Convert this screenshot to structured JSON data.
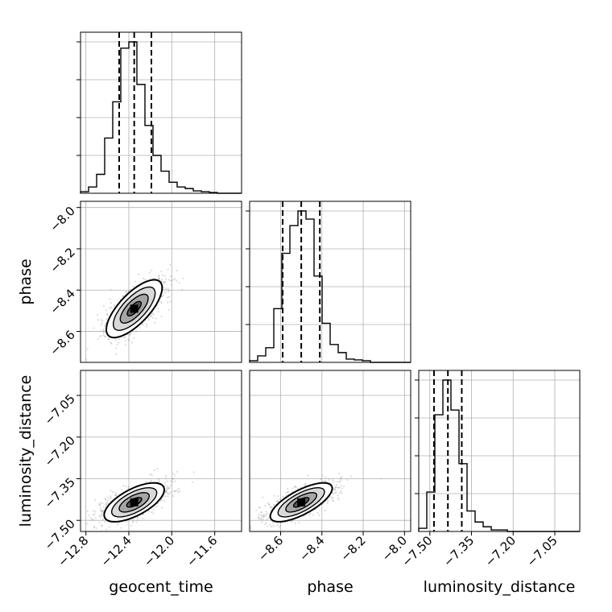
{
  "chart_data": {
    "type": "corner",
    "parameters": [
      "geocent_time",
      "phase",
      "luminosity_distance"
    ],
    "grid": true,
    "ranges": {
      "geocent_time": [
        -12.85,
        -11.35
      ],
      "phase": [
        -8.75,
        -7.97
      ],
      "luminosity_distance": [
        -7.54,
        -6.96
      ]
    },
    "ticks": {
      "geocent_time": [
        -12.8,
        -12.4,
        -12.0,
        -11.6
      ],
      "phase": [
        -8.6,
        -8.4,
        -8.2,
        -8.0
      ],
      "luminosity_distance": [
        -7.5,
        -7.35,
        -7.2,
        -7.05
      ]
    },
    "tick_labels": {
      "geocent_time": [
        "−12.8",
        "−12.4",
        "−12.0",
        "−11.6"
      ],
      "phase": [
        "−8.6",
        "−8.4",
        "−8.2",
        "−8.0"
      ],
      "luminosity_distance": [
        "−7.50",
        "−7.35",
        "−7.20",
        "−7.05"
      ]
    },
    "quantiles": {
      "geocent_time": [
        -12.49,
        -12.35,
        -12.19
      ],
      "phase": [
        -8.59,
        -8.5,
        -8.41
      ],
      "luminosity_distance": [
        -7.485,
        -7.435,
        -7.385
      ]
    },
    "histograms": {
      "geocent_time": {
        "edges": [
          -12.85,
          -12.775,
          -12.7,
          -12.625,
          -12.55,
          -12.475,
          -12.4,
          -12.325,
          -12.25,
          -12.175,
          -12.1,
          -12.025,
          -11.95,
          -11.875,
          -11.8,
          -11.725,
          -11.65,
          -11.575,
          -11.5,
          -11.425,
          -11.35
        ],
        "counts": [
          0.01,
          0.04,
          0.12,
          0.35,
          0.58,
          0.92,
          0.96,
          0.69,
          0.43,
          0.24,
          0.14,
          0.07,
          0.04,
          0.03,
          0.015,
          0.01,
          0.005,
          0.0,
          0.0,
          0.0
        ]
      },
      "phase": {
        "edges": [
          -8.75,
          -8.711,
          -8.672,
          -8.633,
          -8.594,
          -8.555,
          -8.516,
          -8.477,
          -8.438,
          -8.399,
          -8.36,
          -8.321,
          -8.282,
          -8.243,
          -8.204,
          -8.165,
          -8.126,
          -8.087,
          -8.048,
          -8.009,
          -7.97
        ],
        "counts": [
          0.01,
          0.04,
          0.09,
          0.33,
          0.67,
          0.84,
          0.93,
          0.88,
          0.53,
          0.24,
          0.11,
          0.06,
          0.02,
          0.015,
          0.01,
          0.0,
          0.0,
          0.0,
          0.0,
          0.0
        ]
      },
      "luminosity_distance": {
        "edges": [
          -7.54,
          -7.511,
          -7.482,
          -7.453,
          -7.424,
          -7.395,
          -7.366,
          -7.337,
          -7.308,
          -7.279,
          -7.25,
          -7.221,
          -7.192,
          -7.163,
          -7.134,
          -7.105,
          -7.076,
          -7.047,
          -7.018,
          -6.989,
          -6.96
        ],
        "counts": [
          0.02,
          0.25,
          0.74,
          0.96,
          0.77,
          0.43,
          0.13,
          0.06,
          0.03,
          0.01,
          0.01,
          0.0,
          0.0,
          0.0,
          0.0,
          0.0,
          0.0,
          0.0,
          0.0,
          0.0
        ]
      }
    },
    "joint": [
      {
        "x": "geocent_time",
        "y": "phase",
        "center": [
          -12.35,
          -8.49
        ],
        "sd": [
          0.13,
          0.07
        ],
        "correlation": 0.72,
        "contour_levels_sigma": [
          0.5,
          1.0,
          1.5,
          2.0
        ]
      },
      {
        "x": "geocent_time",
        "y": "luminosity_distance",
        "center": [
          -12.35,
          -7.435
        ],
        "sd": [
          0.14,
          0.035
        ],
        "correlation": 0.65,
        "contour_levels_sigma": [
          0.5,
          1.0,
          1.5,
          2.0
        ]
      },
      {
        "x": "phase",
        "y": "luminosity_distance",
        "center": [
          -8.5,
          -7.435
        ],
        "sd": [
          0.075,
          0.035
        ],
        "correlation": 0.72,
        "contour_levels_sigma": [
          0.5,
          1.0,
          1.5,
          2.0
        ]
      }
    ]
  }
}
